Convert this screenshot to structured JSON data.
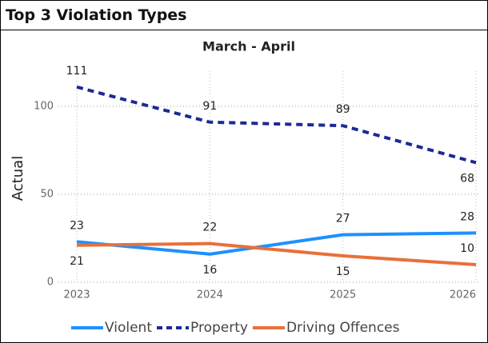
{
  "header": {
    "title": "Top 3 Violation Types"
  },
  "chart_data": {
    "type": "line",
    "title": "March - April",
    "ylabel": "Actual",
    "categories": [
      "2023",
      "2024",
      "2025",
      "2026"
    ],
    "series": [
      {
        "name": "Violent",
        "color": "#1e90ff",
        "dash": false,
        "values": [
          23,
          16,
          27,
          28
        ]
      },
      {
        "name": "Property",
        "color": "#1b2a94",
        "dash": true,
        "values": [
          111,
          91,
          89,
          68
        ]
      },
      {
        "name": "Driving Offences",
        "color": "#e8703a",
        "dash": false,
        "values": [
          21,
          22,
          15,
          10
        ]
      }
    ],
    "ylim": [
      0,
      120
    ],
    "yticks": [
      0,
      50,
      100
    ],
    "grid": true,
    "legend": "bottom"
  }
}
